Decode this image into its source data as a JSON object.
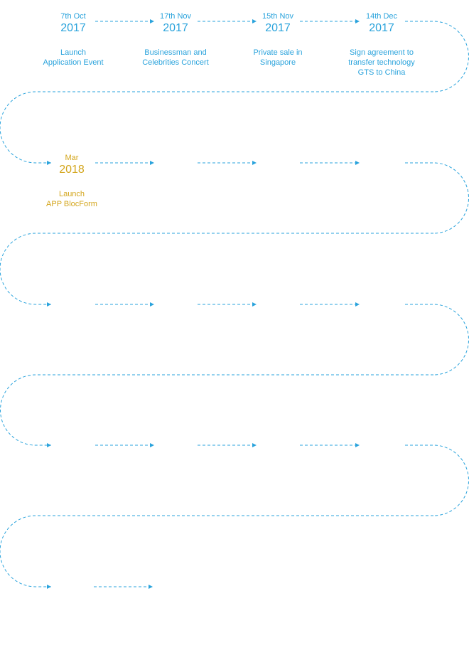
{
  "colors": {
    "line": "#2aa3dc",
    "past": "#2aa3dc",
    "current": "#d3a51b"
  },
  "milestones": [
    {
      "date": "7th Oct",
      "year": "2017",
      "text": [
        "Launch",
        "Application Event"
      ],
      "status": "past"
    },
    {
      "date": "17th Nov",
      "year": "2017",
      "text": [
        "Businessman and",
        "Celebrities Concert"
      ],
      "status": "past"
    },
    {
      "date": "15th Nov",
      "year": "2017",
      "text": [
        "Private sale in",
        "Singapore"
      ],
      "status": "past"
    },
    {
      "date": "14th Dec",
      "year": "2017",
      "text": [
        "Sign agreement to",
        "transfer technology",
        "GTS to China"
      ],
      "status": "past"
    },
    {
      "date": "Mar",
      "year": "2018",
      "text": [
        "Launch",
        "APP BlocForm"
      ],
      "status": "current"
    }
  ]
}
